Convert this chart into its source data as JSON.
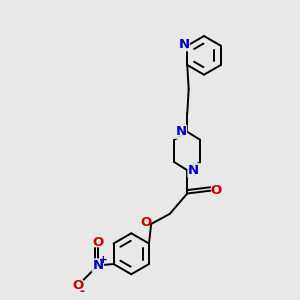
{
  "background_color": "#e8e8e8",
  "bond_color": "#000000",
  "N_color": "#0000cc",
  "O_color": "#cc0000",
  "figsize": [
    3.0,
    3.0
  ],
  "dpi": 100,
  "xlim": [
    0,
    10
  ],
  "ylim": [
    0,
    10
  ]
}
